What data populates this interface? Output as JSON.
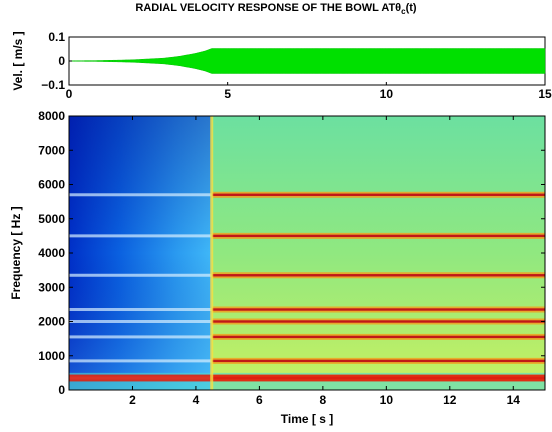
{
  "title": "RADIAL VELOCITY RESPONSE OF THE BOWL AT",
  "title_symbol": "θ",
  "title_sub": "c",
  "title_suffix": "(t)",
  "chart_data": [
    {
      "type": "line",
      "ylabel": "Vel. [ m/s ]",
      "xlabel": "",
      "xlim": [
        0,
        15
      ],
      "ylim": [
        -0.1,
        0.1
      ],
      "xticks": [
        "0",
        "5",
        "10",
        "15"
      ],
      "yticks": [
        "0.1",
        "0",
        "−0.1"
      ],
      "series": [
        {
          "color": "#00e000",
          "envelope": {
            "x": [
              0,
              1.0,
              2.0,
              3.0,
              3.5,
              4.0,
              4.3,
              4.5,
              15
            ],
            "amp": [
              0.001,
              0.002,
              0.005,
              0.012,
              0.02,
              0.032,
              0.042,
              0.052,
              0.052
            ]
          }
        }
      ]
    },
    {
      "type": "heatmap",
      "xlabel": "Time [ s ]",
      "ylabel": "Frequency [ Hz ]",
      "xlim": [
        0,
        15
      ],
      "ylim": [
        0,
        8000
      ],
      "xticks": [
        "2",
        "4",
        "6",
        "8",
        "10",
        "12",
        "14"
      ],
      "yticks": [
        "0",
        "1000",
        "2000",
        "3000",
        "4000",
        "5000",
        "6000",
        "7000",
        "8000"
      ],
      "colormap": "jet",
      "regions": [
        {
          "x": [
            0,
            4.5
          ],
          "level": "low",
          "color": "#1e90ff"
        },
        {
          "x": [
            4.5,
            15
          ],
          "level": "high",
          "color": "#aee86a"
        }
      ],
      "bands_hz": [
        350,
        850,
        1550,
        2000,
        2350,
        3350,
        4500,
        5700
      ]
    }
  ]
}
